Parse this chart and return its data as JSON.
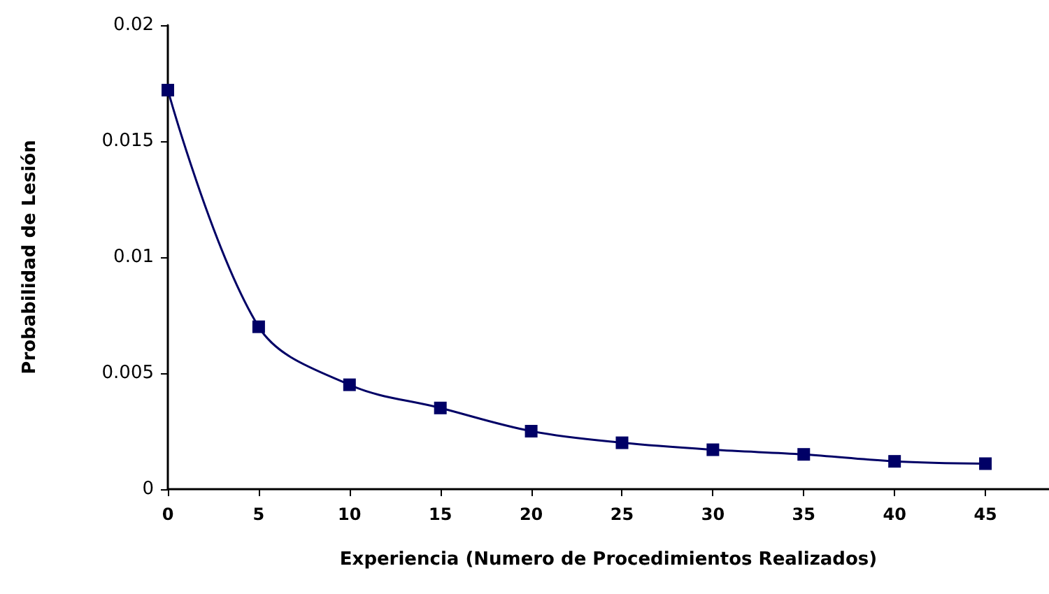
{
  "chart_data": {
    "type": "line",
    "xlabel": "Experiencia (Numero de Procedimientos Realizados)",
    "ylabel": "Probabilidad de Lesión",
    "x": [
      0,
      5,
      10,
      15,
      20,
      25,
      30,
      35,
      40,
      45
    ],
    "series": [
      {
        "color": "#000066",
        "values": [
          0.0172,
          0.007,
          0.0045,
          0.0035,
          0.0025,
          0.002,
          0.0017,
          0.0015,
          0.0012,
          0.0011
        ]
      }
    ],
    "xlim": [
      0,
      48.5
    ],
    "xticks": [
      0,
      5,
      10,
      15,
      20,
      25,
      30,
      35,
      40,
      45
    ],
    "ylim": [
      0,
      0.02
    ],
    "yticks": [
      0,
      0.005,
      0.01,
      0.015,
      0.02
    ],
    "marker": "square"
  }
}
